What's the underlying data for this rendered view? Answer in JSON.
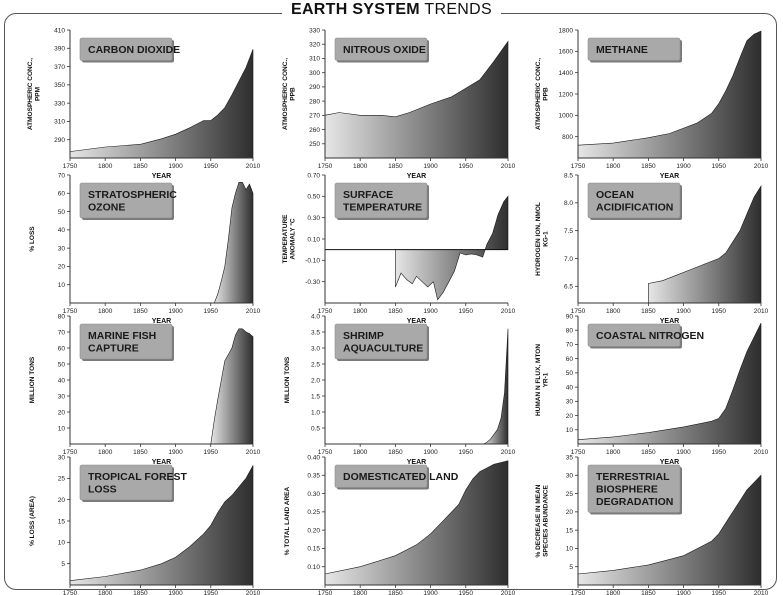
{
  "page": {
    "title_bold": "EARTH SYSTEM",
    "title_rest": "TRENDS"
  },
  "colors": {
    "area_dark": "#2e2e2e",
    "area_light": "#e6e6e6",
    "label_box": "#a9a9a9",
    "axis": "#333333",
    "frame": "#555555"
  },
  "chart_data": [
    {
      "type": "area",
      "title": "CARBON DIOXIDE",
      "xlabel": "YEAR",
      "ylabel": "ATMOSPHERIC CONC., PPM",
      "xlim": [
        1750,
        2010
      ],
      "ylim": [
        270,
        410
      ],
      "xticks": [
        1750,
        1800,
        1850,
        1900,
        1950,
        2010
      ],
      "yticks": [
        290,
        310,
        330,
        350,
        370,
        390,
        410
      ],
      "ytick_labels": [
        "290",
        "310",
        "330",
        "350",
        "370",
        "390",
        "410"
      ],
      "x": [
        1750,
        1800,
        1850,
        1880,
        1900,
        1920,
        1940,
        1950,
        1960,
        1970,
        1980,
        1990,
        2000,
        2010
      ],
      "y": [
        277,
        282,
        285,
        291,
        296,
        303,
        311,
        311,
        317,
        325,
        339,
        354,
        369,
        389
      ]
    },
    {
      "type": "area",
      "title": "NITROUS OXIDE",
      "xlabel": "YEAR",
      "ylabel": "ATMOSPHERIC CONC., PPB",
      "xlim": [
        1750,
        2010
      ],
      "ylim": [
        240,
        330
      ],
      "xticks": [
        1750,
        1800,
        1850,
        1900,
        1950,
        2010
      ],
      "yticks": [
        250,
        260,
        270,
        280,
        290,
        300,
        310,
        320,
        330
      ],
      "ytick_labels": [
        "250",
        "260",
        "270",
        "280",
        "290",
        "300",
        "310",
        "320",
        "330"
      ],
      "x": [
        1750,
        1770,
        1800,
        1830,
        1850,
        1870,
        1900,
        1930,
        1950,
        1970,
        1990,
        2010
      ],
      "y": [
        270,
        272,
        270,
        270,
        269,
        272,
        278,
        283,
        289,
        295,
        308,
        322
      ]
    },
    {
      "type": "area",
      "title": "METHANE",
      "xlabel": "YEAR",
      "ylabel": "ATMOSPHERIC CONC., PPB",
      "xlim": [
        1750,
        2010
      ],
      "ylim": [
        600,
        1800
      ],
      "xticks": [
        1750,
        1800,
        1850,
        1900,
        1950,
        2010
      ],
      "yticks": [
        800,
        1000,
        1200,
        1400,
        1600,
        1800
      ],
      "ytick_labels": [
        "800",
        "1000",
        "1200",
        "1400",
        "1600",
        "1800"
      ],
      "x": [
        1750,
        1800,
        1850,
        1880,
        1900,
        1920,
        1940,
        1950,
        1960,
        1970,
        1980,
        1990,
        2000,
        2010
      ],
      "y": [
        720,
        740,
        790,
        830,
        880,
        930,
        1020,
        1110,
        1230,
        1370,
        1540,
        1700,
        1760,
        1790
      ]
    },
    {
      "type": "area",
      "title": "STRATOSPHERIC OZONE",
      "xlabel": "YEAR",
      "ylabel": "% LOSS",
      "xlim": [
        1750,
        2010
      ],
      "ylim": [
        0,
        70
      ],
      "xticks": [
        1750,
        1800,
        1850,
        1900,
        1950,
        2010
      ],
      "yticks": [
        10,
        20,
        30,
        40,
        50,
        60,
        70
      ],
      "ytick_labels": [
        "10",
        "20",
        "30",
        "40",
        "50",
        "60",
        "70"
      ],
      "x": [
        1955,
        1960,
        1965,
        1970,
        1975,
        1980,
        1985,
        1990,
        1995,
        2000,
        2005,
        2010
      ],
      "y": [
        0,
        5,
        12,
        20,
        35,
        52,
        60,
        66,
        66,
        62,
        65,
        60
      ]
    },
    {
      "type": "area",
      "title": "SURFACE TEMPERATURE",
      "xlabel": "YEAR",
      "ylabel": "TEMPERATURE ANOMALY °C",
      "xlim": [
        1750,
        2010
      ],
      "ylim": [
        -0.5,
        0.7
      ],
      "baseline": 0,
      "xticks": [
        1750,
        1800,
        1850,
        1900,
        1950,
        2010
      ],
      "yticks": [
        -0.3,
        -0.1,
        0.1,
        0.3,
        0.5,
        0.7
      ],
      "ytick_labels": [
        "-0.30",
        "-0.10",
        "0.10",
        "0.30",
        "0.50",
        "0.70"
      ],
      "x": [
        1850,
        1858,
        1866,
        1874,
        1880,
        1888,
        1896,
        1904,
        1910,
        1918,
        1926,
        1934,
        1942,
        1950,
        1958,
        1966,
        1974,
        1980,
        1988,
        1996,
        2004,
        2010
      ],
      "y": [
        -0.35,
        -0.22,
        -0.28,
        -0.32,
        -0.25,
        -0.3,
        -0.35,
        -0.3,
        -0.47,
        -0.4,
        -0.3,
        -0.2,
        -0.03,
        -0.05,
        -0.04,
        -0.05,
        -0.07,
        0.05,
        0.15,
        0.33,
        0.45,
        0.5
      ]
    },
    {
      "type": "area",
      "title": "OCEAN ACIDIFICATION",
      "xlabel": "YEAR",
      "ylabel": "HYDROGEN ION, NMOL KG-1",
      "xlim": [
        1750,
        2010
      ],
      "ylim": [
        6.2,
        8.5
      ],
      "xticks": [
        1750,
        1800,
        1850,
        1900,
        1950,
        2010
      ],
      "yticks": [
        6.5,
        7.0,
        7.5,
        8.0,
        8.5
      ],
      "ytick_labels": [
        "6.5",
        "7.0",
        "7.5",
        "8.0",
        "8.5"
      ],
      "x": [
        1850,
        1870,
        1890,
        1910,
        1930,
        1950,
        1960,
        1970,
        1980,
        1990,
        2000,
        2010
      ],
      "y": [
        6.55,
        6.6,
        6.7,
        6.8,
        6.9,
        7.0,
        7.1,
        7.3,
        7.5,
        7.8,
        8.1,
        8.3
      ]
    },
    {
      "type": "area",
      "title": "MARINE FISH CAPTURE",
      "xlabel": "YEAR",
      "ylabel": "MILLION TONS",
      "xlim": [
        1750,
        2010
      ],
      "ylim": [
        0,
        80
      ],
      "xticks": [
        1750,
        1800,
        1850,
        1900,
        1950,
        2010
      ],
      "yticks": [
        10,
        20,
        30,
        40,
        50,
        60,
        70,
        80
      ],
      "ytick_labels": [
        "10",
        "20",
        "30",
        "40",
        "50",
        "60",
        "70",
        "80"
      ],
      "x": [
        1950,
        1955,
        1960,
        1965,
        1970,
        1975,
        1980,
        1985,
        1990,
        1995,
        2000,
        2005,
        2010
      ],
      "y": [
        0,
        15,
        28,
        40,
        52,
        56,
        60,
        68,
        72,
        72,
        70,
        69,
        67
      ]
    },
    {
      "type": "area",
      "title": "SHRIMP AQUACULTURE",
      "xlabel": "YEAR",
      "ylabel": "MILLION TONS",
      "xlim": [
        1750,
        2010
      ],
      "ylim": [
        0,
        4.0
      ],
      "xticks": [
        1750,
        1800,
        1850,
        1900,
        1950,
        2010
      ],
      "yticks": [
        0.5,
        1.0,
        1.5,
        2.0,
        2.5,
        3.0,
        3.5,
        4.0
      ],
      "ytick_labels": [
        "0.5",
        "1.0",
        "1.5",
        "2.0",
        "2.5",
        "3.0",
        "3.5",
        "4.0"
      ],
      "x": [
        1975,
        1980,
        1985,
        1990,
        1995,
        2000,
        2005,
        2010
      ],
      "y": [
        0,
        0.05,
        0.15,
        0.3,
        0.45,
        0.8,
        1.6,
        3.6
      ]
    },
    {
      "type": "area",
      "title": "COASTAL NITROGEN",
      "xlabel": "YEAR",
      "ylabel": "HUMAN N FLUX, MTON YR-1",
      "xlim": [
        1750,
        2010
      ],
      "ylim": [
        0,
        90
      ],
      "xticks": [
        1750,
        1800,
        1850,
        1900,
        1950,
        2010
      ],
      "yticks": [
        10,
        20,
        30,
        40,
        50,
        60,
        70,
        80,
        90
      ],
      "ytick_labels": [
        "10",
        "20",
        "30",
        "40",
        "50",
        "60",
        "70",
        "80",
        "90"
      ],
      "x": [
        1750,
        1800,
        1850,
        1900,
        1920,
        1940,
        1950,
        1960,
        1970,
        1980,
        1990,
        2000,
        2010
      ],
      "y": [
        3,
        5,
        8,
        12,
        14,
        16,
        18,
        25,
        38,
        52,
        65,
        75,
        85
      ]
    },
    {
      "type": "area",
      "title": "TROPICAL FOREST LOSS",
      "xlabel": "YEAR",
      "ylabel": "% LOSS (AREA)",
      "xlim": [
        1750,
        2010
      ],
      "ylim": [
        0,
        30
      ],
      "xticks": [
        1750,
        1800,
        1850,
        1900,
        1950,
        2010
      ],
      "yticks": [
        5,
        10,
        15,
        20,
        25,
        30
      ],
      "ytick_labels": [
        "5",
        "10",
        "15",
        "20",
        "25",
        "30"
      ],
      "x": [
        1750,
        1800,
        1850,
        1880,
        1900,
        1920,
        1940,
        1950,
        1960,
        1970,
        1980,
        1990,
        2000,
        2010
      ],
      "y": [
        1,
        2,
        3.5,
        5,
        6.5,
        9,
        12,
        14,
        17,
        19.5,
        21,
        23,
        25,
        28
      ]
    },
    {
      "type": "area",
      "title": "DOMESTICATED LAND",
      "xlabel": "YEAR",
      "ylabel": "% TOTAL LAND AREA",
      "xlim": [
        1750,
        2010
      ],
      "ylim": [
        0.05,
        0.4
      ],
      "xticks": [
        1750,
        1800,
        1850,
        1900,
        1950,
        2010
      ],
      "yticks": [
        0.1,
        0.15,
        0.2,
        0.25,
        0.3,
        0.35,
        0.4
      ],
      "ytick_labels": [
        "0.10",
        "0.15",
        "0.20",
        "0.25",
        "0.30",
        "0.35",
        "0.40"
      ],
      "x": [
        1750,
        1800,
        1850,
        1880,
        1900,
        1920,
        1940,
        1950,
        1960,
        1970,
        1980,
        1990,
        2000,
        2010
      ],
      "y": [
        0.08,
        0.1,
        0.13,
        0.16,
        0.19,
        0.23,
        0.27,
        0.31,
        0.34,
        0.36,
        0.37,
        0.38,
        0.385,
        0.39
      ]
    },
    {
      "type": "area",
      "title": "TERRESTRIAL BIOSPHERE DEGRADATION",
      "xlabel": "YEAR",
      "ylabel": "% DECREASE IN MEAN SPECIES ABUNDANCE",
      "xlim": [
        1750,
        2010
      ],
      "ylim": [
        0,
        35
      ],
      "xticks": [
        1750,
        1800,
        1850,
        1900,
        1950,
        2010
      ],
      "yticks": [
        5,
        10,
        15,
        20,
        25,
        30,
        35
      ],
      "ytick_labels": [
        "5",
        "10",
        "15",
        "20",
        "25",
        "30",
        "35"
      ],
      "x": [
        1750,
        1800,
        1850,
        1880,
        1900,
        1920,
        1940,
        1950,
        1960,
        1970,
        1980,
        1990,
        2000,
        2010
      ],
      "y": [
        3,
        4,
        5.5,
        7,
        8,
        10,
        12,
        14,
        17,
        20,
        23,
        26,
        28,
        30
      ]
    }
  ]
}
